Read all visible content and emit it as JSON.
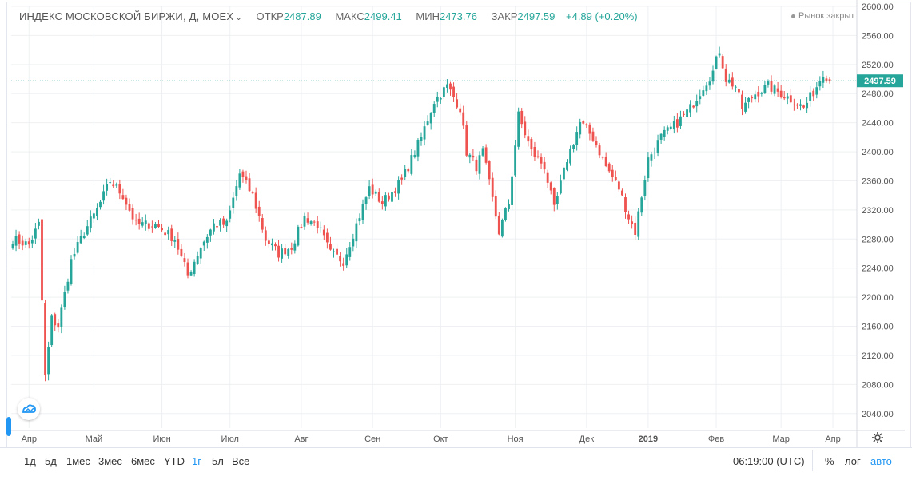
{
  "legend": {
    "symbol": "ИНДЕКС МОСКОВСКОЙ БИРЖИ, Д, MOEX",
    "open_label": "ОТКР",
    "open": "2487.89",
    "high_label": "МАКС",
    "high": "2499.41",
    "low_label": "МИН",
    "low": "2473.76",
    "close_label": "ЗАКР",
    "close": "2497.59",
    "change": "+4.89 (+0.20%)"
  },
  "status": "Рынок закрыт",
  "price_tag": "2497.59",
  "colors": {
    "up": "#26a69a",
    "down": "#ef5350",
    "accent": "#2196f3",
    "grid": "#eef0f3"
  },
  "ranges": [
    "1д",
    "5д",
    "1мес",
    "3мес",
    "6мес",
    "YTD",
    "1г",
    "5л",
    "Все"
  ],
  "active_range": "1г",
  "time": "06:19:00 (UTC)",
  "tools": {
    "percent": "%",
    "log": "лог",
    "auto": "авто"
  },
  "chart_data": {
    "type": "candlestick",
    "title": "ИНДЕКС МОСКОВСКОЙ БИРЖИ, Д, MOEX",
    "ylim": [
      2020,
      2600
    ],
    "y_ticks": [
      2040,
      2080,
      2120,
      2160,
      2200,
      2240,
      2280,
      2320,
      2360,
      2400,
      2440,
      2480,
      2520,
      2560,
      2600
    ],
    "x_labels": [
      {
        "label": "Апр",
        "i": 5
      },
      {
        "label": "Май",
        "i": 25
      },
      {
        "label": "Июн",
        "i": 46
      },
      {
        "label": "Июл",
        "i": 67
      },
      {
        "label": "Авг",
        "i": 89
      },
      {
        "label": "Сен",
        "i": 111
      },
      {
        "label": "Окт",
        "i": 132
      },
      {
        "label": "Ноя",
        "i": 155
      },
      {
        "label": "Дек",
        "i": 177
      },
      {
        "label": "2019",
        "i": 196,
        "bold": true
      },
      {
        "label": "Фев",
        "i": 217
      },
      {
        "label": "Мар",
        "i": 237
      },
      {
        "label": "Апр",
        "i": 253
      }
    ],
    "last_close": 2497.59,
    "anchors": [
      [
        0,
        2280
      ],
      [
        5,
        2272
      ],
      [
        8,
        2300
      ],
      [
        10,
        2090
      ],
      [
        12,
        2170
      ],
      [
        14,
        2160
      ],
      [
        18,
        2250
      ],
      [
        22,
        2290
      ],
      [
        26,
        2320
      ],
      [
        30,
        2360
      ],
      [
        34,
        2340
      ],
      [
        38,
        2300
      ],
      [
        44,
        2300
      ],
      [
        50,
        2280
      ],
      [
        54,
        2230
      ],
      [
        58,
        2270
      ],
      [
        62,
        2300
      ],
      [
        66,
        2300
      ],
      [
        70,
        2370
      ],
      [
        74,
        2340
      ],
      [
        78,
        2280
      ],
      [
        82,
        2260
      ],
      [
        86,
        2270
      ],
      [
        90,
        2310
      ],
      [
        94,
        2300
      ],
      [
        98,
        2260
      ],
      [
        102,
        2250
      ],
      [
        106,
        2300
      ],
      [
        110,
        2350
      ],
      [
        114,
        2330
      ],
      [
        120,
        2360
      ],
      [
        126,
        2420
      ],
      [
        130,
        2470
      ],
      [
        134,
        2490
      ],
      [
        138,
        2460
      ],
      [
        140,
        2400
      ],
      [
        143,
        2380
      ],
      [
        145,
        2400
      ],
      [
        150,
        2290
      ],
      [
        153,
        2330
      ],
      [
        156,
        2450
      ],
      [
        160,
        2400
      ],
      [
        164,
        2380
      ],
      [
        167,
        2320
      ],
      [
        171,
        2390
      ],
      [
        175,
        2440
      ],
      [
        179,
        2420
      ],
      [
        183,
        2380
      ],
      [
        187,
        2350
      ],
      [
        190,
        2310
      ],
      [
        192,
        2290
      ],
      [
        196,
        2390
      ],
      [
        200,
        2420
      ],
      [
        205,
        2440
      ],
      [
        209,
        2460
      ],
      [
        213,
        2490
      ],
      [
        216,
        2510
      ],
      [
        218,
        2540
      ],
      [
        220,
        2500
      ],
      [
        223,
        2490
      ],
      [
        225,
        2460
      ],
      [
        229,
        2480
      ],
      [
        233,
        2490
      ],
      [
        237,
        2480
      ],
      [
        241,
        2470
      ],
      [
        244,
        2460
      ],
      [
        248,
        2490
      ],
      [
        250,
        2510
      ],
      [
        252,
        2497.59
      ]
    ],
    "n_candles": 253
  }
}
